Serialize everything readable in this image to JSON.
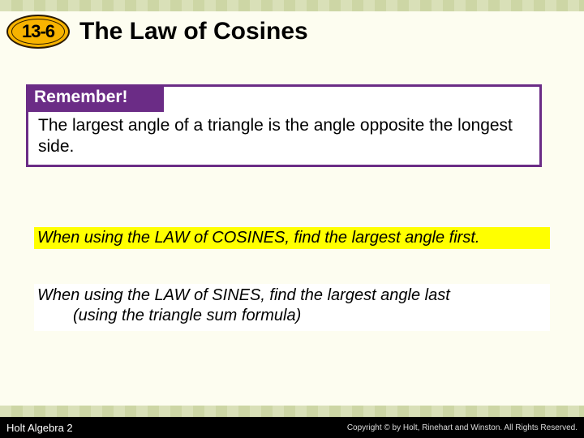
{
  "header": {
    "section_number": "13-6",
    "title": "The Law of Cosines"
  },
  "callout": {
    "heading": "Remember!",
    "body": "The largest angle of a triangle is the angle opposite the longest side."
  },
  "tips": {
    "cosines": "When using the LAW of COSINES, find the largest angle first.",
    "sines_line1": "When using the LAW of SINES, find the largest angle last",
    "sines_line2": "(using the triangle sum formula)"
  },
  "footer": {
    "left": "Holt Algebra 2",
    "right": "Copyright © by Holt, Rinehart and Winston. All Rights Reserved."
  },
  "colors": {
    "callout_border": "#6b2c86",
    "badge_fill": "#f7b300",
    "highlight": "#ffff00",
    "page_bg": "#fdfdf0"
  }
}
